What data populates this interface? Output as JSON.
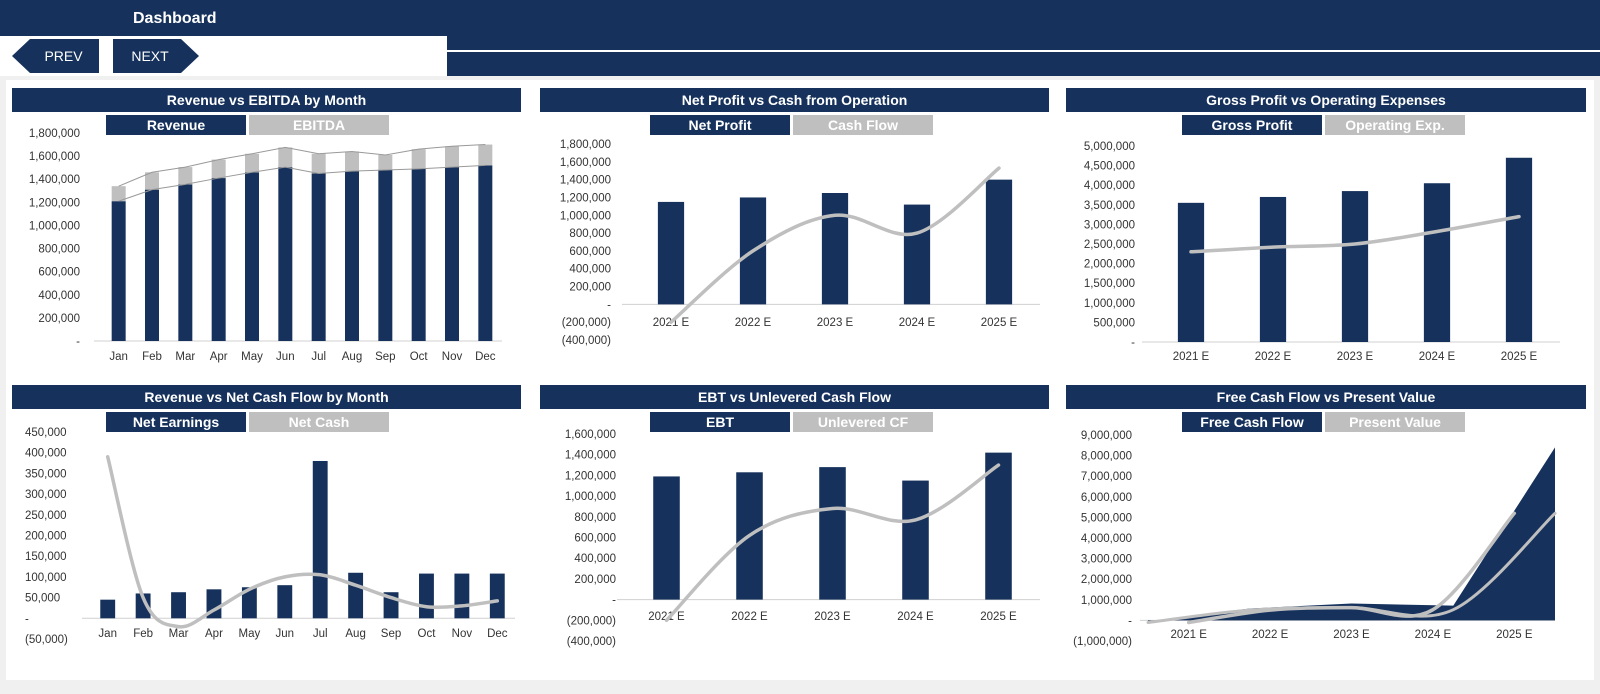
{
  "header": {
    "title": "Dashboard"
  },
  "nav": {
    "prev_label": "PREV",
    "next_label": "NEXT"
  },
  "colors": {
    "navy": "#16325c",
    "gray": "#bfbfbf"
  },
  "chart_data": [
    {
      "type": "bar",
      "title": "Revenue vs EBITDA by Month",
      "legend": [
        "Revenue",
        "EBITDA"
      ],
      "stacked": true,
      "categories": [
        "Jan",
        "Feb",
        "Mar",
        "Apr",
        "May",
        "Jun",
        "Jul",
        "Aug",
        "Sep",
        "Oct",
        "Nov",
        "Dec"
      ],
      "series": [
        {
          "name": "Revenue",
          "kind": "bar",
          "values": [
            1210000,
            1310000,
            1355000,
            1410000,
            1460000,
            1505000,
            1450000,
            1470000,
            1480000,
            1490000,
            1505000,
            1520000
          ]
        },
        {
          "name": "EBITDA",
          "kind": "bar",
          "values": [
            130000,
            150000,
            150000,
            160000,
            160000,
            170000,
            170000,
            170000,
            130000,
            170000,
            180000,
            180000
          ]
        }
      ],
      "ylim": [
        0,
        1800000
      ],
      "ytick_labels": [
        "-",
        "200,000",
        "400,000",
        "600,000",
        "800,000",
        "1,000,000",
        "1,200,000",
        "1,400,000",
        "1,600,000",
        "1,800,000"
      ]
    },
    {
      "type": "bar",
      "title": "Net Profit vs Cash from Operation",
      "legend": [
        "Net Profit",
        "Cash Flow"
      ],
      "categories": [
        "2021 E",
        "2022 E",
        "2023 E",
        "2024 E",
        "2025 E"
      ],
      "series": [
        {
          "name": "Net Profit",
          "kind": "bar",
          "values": [
            1150000,
            1200000,
            1250000,
            1120000,
            1400000
          ]
        },
        {
          "name": "Cash Flow",
          "kind": "line",
          "values": [
            -200000,
            600000,
            1000000,
            800000,
            1530000
          ]
        }
      ],
      "ylim": [
        -400000,
        1800000
      ],
      "ytick_labels": [
        "(400,000)",
        "(200,000)",
        "-",
        "200,000",
        "400,000",
        "600,000",
        "800,000",
        "1,000,000",
        "1,200,000",
        "1,400,000",
        "1,600,000",
        "1,800,000"
      ]
    },
    {
      "type": "bar",
      "title": "Gross Profit vs Operating Expenses",
      "legend": [
        "Gross Profit",
        "Operating Exp."
      ],
      "categories": [
        "2021 E",
        "2022 E",
        "2023 E",
        "2024 E",
        "2025 E"
      ],
      "series": [
        {
          "name": "Gross Profit",
          "kind": "bar",
          "values": [
            3550000,
            3700000,
            3850000,
            4050000,
            4700000
          ]
        },
        {
          "name": "Operating Exp.",
          "kind": "line",
          "values": [
            2300000,
            2420000,
            2500000,
            2820000,
            3200000
          ]
        }
      ],
      "ylim": [
        0,
        5000000
      ],
      "ytick_labels": [
        "-",
        "500,000",
        "1,000,000",
        "1,500,000",
        "2,000,000",
        "2,500,000",
        "3,000,000",
        "3,500,000",
        "4,000,000",
        "4,500,000",
        "5,000,000"
      ]
    },
    {
      "type": "bar",
      "title": "Revenue vs Net Cash Flow by Month",
      "legend": [
        "Net Earnings",
        "Net Cash"
      ],
      "categories": [
        "Jan",
        "Feb",
        "Mar",
        "Apr",
        "May",
        "Jun",
        "Jul",
        "Aug",
        "Sep",
        "Oct",
        "Nov",
        "Dec"
      ],
      "series": [
        {
          "name": "Net Earnings",
          "kind": "bar",
          "values": [
            45000,
            60000,
            63000,
            70000,
            75000,
            80000,
            380000,
            110000,
            63000,
            108000,
            108000,
            108000
          ]
        },
        {
          "name": "Net Cash",
          "kind": "line",
          "values": [
            390000,
            50000,
            -20000,
            20000,
            70000,
            100000,
            105000,
            80000,
            50000,
            28000,
            30000,
            42000
          ]
        }
      ],
      "ylim": [
        -50000,
        450000
      ],
      "ytick_labels": [
        "(50,000)",
        "-",
        "50,000",
        "100,000",
        "150,000",
        "200,000",
        "250,000",
        "300,000",
        "350,000",
        "400,000",
        "450,000"
      ]
    },
    {
      "type": "bar",
      "title": "EBT vs Unlevered Cash Flow",
      "legend": [
        "EBT",
        "Unlevered CF"
      ],
      "categories": [
        "2021 E",
        "2022 E",
        "2023 E",
        "2024 E",
        "2025 E"
      ],
      "series": [
        {
          "name": "EBT",
          "kind": "bar",
          "values": [
            1190000,
            1230000,
            1280000,
            1150000,
            1420000
          ]
        },
        {
          "name": "Unlevered CF",
          "kind": "line",
          "values": [
            -200000,
            620000,
            880000,
            770000,
            1300000
          ]
        }
      ],
      "ylim": [
        -400000,
        1600000
      ],
      "ytick_labels": [
        "(400,000)",
        "(200,000)",
        "-",
        "200,000",
        "400,000",
        "600,000",
        "800,000",
        "1,000,000",
        "1,200,000",
        "1,400,000",
        "1,600,000"
      ]
    },
    {
      "type": "area",
      "title": "Free Cash Flow vs Present Value",
      "legend": [
        "Free Cash Flow",
        "Present Value"
      ],
      "categories": [
        "2021 E",
        "2022 E",
        "2023 E",
        "2024 E",
        "2025 E"
      ],
      "series": [
        {
          "name": "Free Cash Flow",
          "kind": "area",
          "values": [
            -50000,
            580000,
            820000,
            720000,
            8400000
          ]
        },
        {
          "name": "Present Value",
          "kind": "line",
          "values": [
            -100000,
            500000,
            620000,
            520000,
            5200000
          ]
        }
      ],
      "ylim": [
        -1000000,
        9000000
      ],
      "ytick_labels": [
        "(1,000,000)",
        "-",
        "1,000,000",
        "2,000,000",
        "3,000,000",
        "4,000,000",
        "5,000,000",
        "6,000,000",
        "7,000,000",
        "8,000,000",
        "9,000,000"
      ]
    }
  ]
}
